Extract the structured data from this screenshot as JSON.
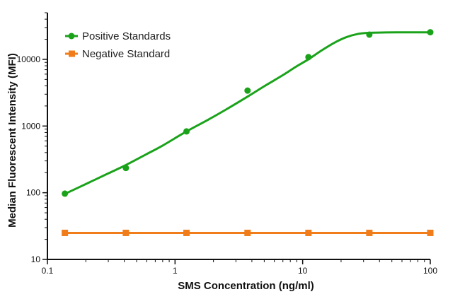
{
  "chart_data": {
    "type": "line",
    "title": "",
    "xlabel": "SMS Concentration (ng/ml)",
    "ylabel": "Median Fluorescent Intensity (MFI)",
    "xscale": "log",
    "yscale": "log",
    "xlim": [
      0.1,
      100
    ],
    "ylim": [
      10,
      50000
    ],
    "x_ticks": [
      {
        "value": 0.1,
        "label": "0.1"
      },
      {
        "value": 1,
        "label": "1"
      },
      {
        "value": 10,
        "label": "10"
      },
      {
        "value": 100,
        "label": "100"
      }
    ],
    "y_ticks": [
      {
        "value": 10,
        "label": "10"
      },
      {
        "value": 100,
        "label": "100"
      },
      {
        "value": 1000,
        "label": "1000"
      },
      {
        "value": 10000,
        "label": "10000"
      }
    ],
    "grid": false,
    "legend_position": "top-left",
    "series": [
      {
        "name": "Positive Standards",
        "color": "#1aa31a",
        "marker": "circle",
        "x": [
          0.137,
          0.412,
          1.23,
          3.7,
          11.1,
          33.3,
          100
        ],
        "y": [
          97,
          235,
          830,
          3400,
          10800,
          23500,
          25500
        ],
        "fit_curve": {
          "x": [
            0.137,
            0.2,
            0.3,
            0.412,
            0.6,
            0.8,
            1.23,
            1.8,
            2.5,
            3.7,
            5,
            7,
            9,
            11.1,
            14,
            18,
            22,
            27,
            33.3,
            45,
            60,
            80,
            100
          ],
          "y": [
            96,
            135,
            195,
            260,
            380,
            510,
            830,
            1230,
            1760,
            2760,
            3950,
            5800,
            7900,
            10000,
            13500,
            18000,
            21500,
            24000,
            25000,
            25300,
            25400,
            25400,
            25400
          ]
        }
      },
      {
        "name": "Negative Standard",
        "color": "#f07d19",
        "marker": "square",
        "x": [
          0.137,
          0.412,
          1.23,
          3.7,
          11.1,
          33.3,
          100
        ],
        "y": [
          25,
          25,
          25,
          25,
          25,
          25,
          25
        ]
      }
    ]
  }
}
